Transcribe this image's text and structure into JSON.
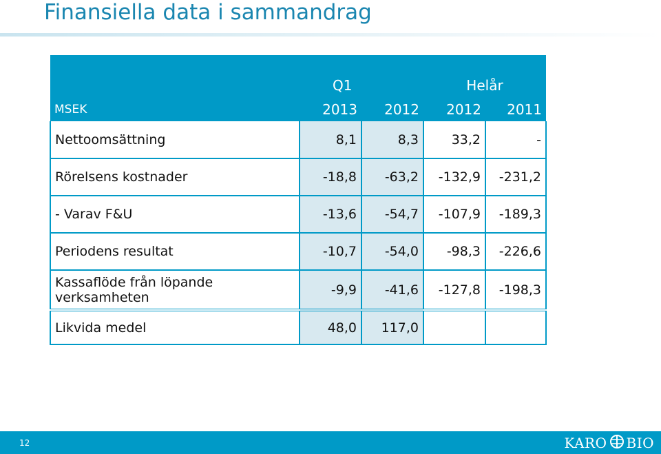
{
  "page": {
    "title": "Finansiella data i sammandrag",
    "page_number": "12"
  },
  "table": {
    "header_groups": {
      "q1": "Q1",
      "helar": "Helår"
    },
    "unit_label": "MSEK",
    "years": [
      "2013",
      "2012",
      "2012",
      "2011"
    ],
    "rows": [
      {
        "label": "Nettoomsättning",
        "values": [
          "8,1",
          "8,3",
          "33,2",
          "-"
        ]
      },
      {
        "label": "Rörelsens kostnader",
        "values": [
          "-18,8",
          "-63,2",
          "-132,9",
          "-231,2"
        ]
      },
      {
        "label": "- Varav F&U",
        "values": [
          "-13,6",
          "-54,7",
          "-107,9",
          "-189,3"
        ]
      },
      {
        "label": "Periodens resultat",
        "values": [
          "-10,7",
          "-54,0",
          "-98,3",
          "-226,6"
        ]
      },
      {
        "label_line1": "Kassaflöde från löpande",
        "label_line2": "verksamheten",
        "values": [
          "-9,9",
          "-41,6",
          "-127,8",
          "-198,3"
        ]
      },
      {
        "label": "Likvida medel",
        "values": [
          "48,0",
          "117,0",
          "",
          ""
        ]
      }
    ]
  },
  "logo": {
    "left": "KARO",
    "right": "BIO"
  },
  "colors": {
    "brand": "#009ac7",
    "title": "#1a86b0",
    "q1_fill": "#d8e9f0"
  }
}
